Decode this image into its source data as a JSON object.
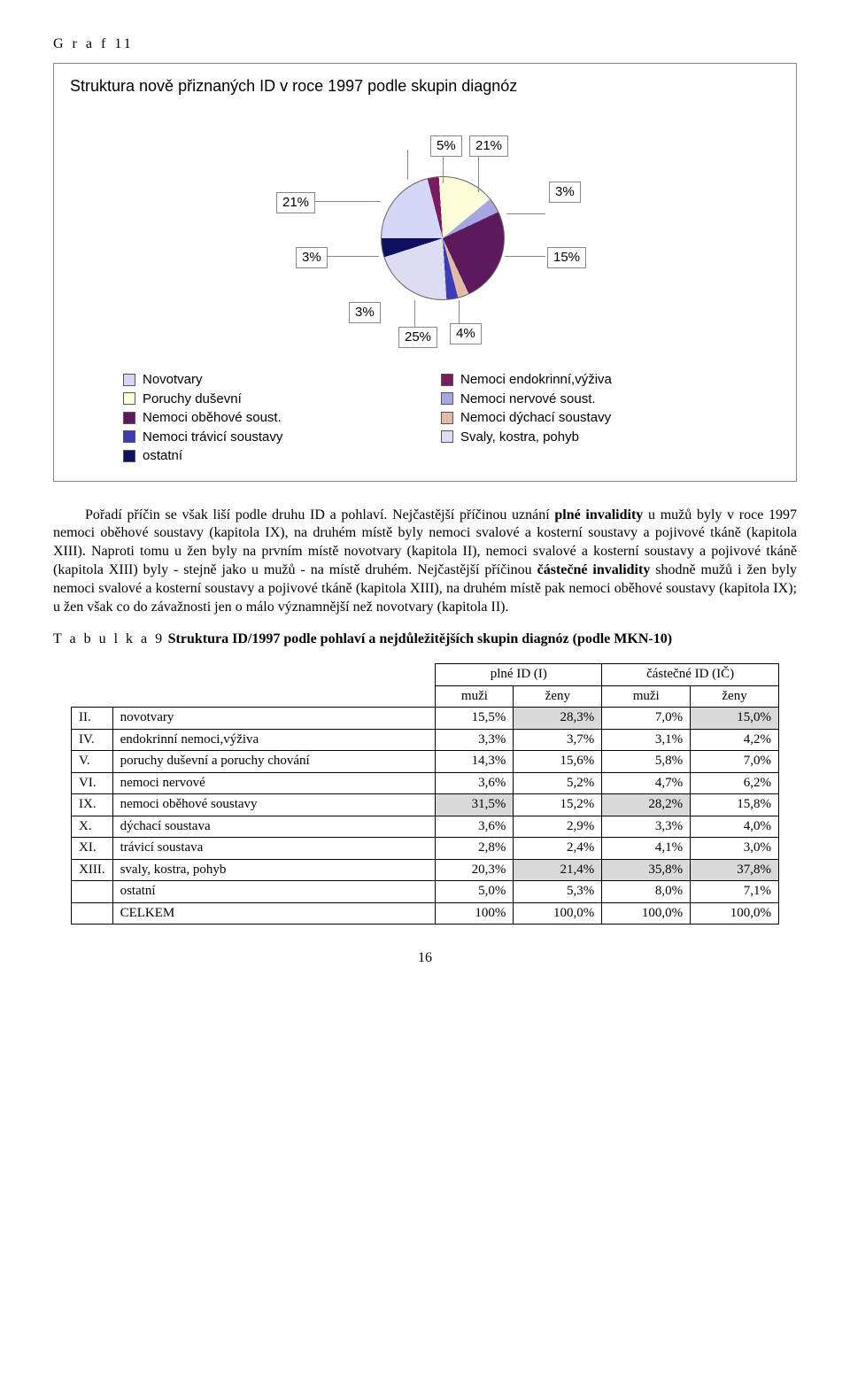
{
  "graf": {
    "label_prefix": "G r a f 11",
    "chart_title": "Struktura nově přiznaných ID v roce 1997 podle skupin diagnóz",
    "type": "pie",
    "slices": [
      {
        "label": "Novotvary",
        "value": 21,
        "color": "#d6d6f7"
      },
      {
        "label": "Nemoci endokrinní,výživa",
        "value": 3,
        "color": "#7a1d5e"
      },
      {
        "label": "Poruchy duševní",
        "value": 15,
        "color": "#fdfdda"
      },
      {
        "label": "Nemoci nervové soust.",
        "value": 4,
        "color": "#a6a6e0"
      },
      {
        "label": "Nemoci oběhové soust.",
        "value": 25,
        "color": "#5b1a5b"
      },
      {
        "label": "Nemoci dýchací soustavy",
        "value": 3,
        "color": "#e0bba8"
      },
      {
        "label": "Nemoci trávicí soustavy",
        "value": 3,
        "color": "#3c3cb5"
      },
      {
        "label": "Svaly, kostra, pohyb",
        "value": 21,
        "color": "#dcdcf2"
      },
      {
        "label": "ostatní",
        "value": 5,
        "color": "#101060"
      }
    ],
    "callouts": {
      "c21a": "21%",
      "c5": "5%",
      "c21b": "21%",
      "c3a": "3%",
      "c15": "15%",
      "c4": "4%",
      "c25": "25%",
      "c3b": "3%",
      "c3c": "3%"
    },
    "legend_left": [
      "Novotvary",
      "Poruchy duševní",
      "Nemoci oběhové soust.",
      "Nemoci trávicí soustavy",
      "ostatní"
    ],
    "legend_right": [
      "Nemoci endokrinní,výživa",
      "Nemoci nervové soust.",
      "Nemoci dýchací soustavy",
      "Svaly, kostra, pohyb"
    ]
  },
  "para1_html": "Pořadí příčin se však liší podle druhu ID a pohlaví. Nejčastější příčinou uznání <b>plné invalidity</b> u mužů byly v roce 1997 nemoci oběhové soustavy (kapitola IX), na druhém místě byly nemoci svalové a kosterní soustavy a pojivové tkáně (kapitola XIII).  Naproti tomu  u žen   byly na prvním místě novotvary (kapitola II), nemoci svalové a kosterní soustavy a pojivové tkáně (kapitola XIII) byly - stejně jako u mužů - na místě druhém. Nejčastější příčinou  <b>částečné invalidity</b> shodně  mužů i žen byly nemoci svalové a kosterní soustavy a pojivové tkáně (kapitola XIII), na druhém místě pak nemoci oběhové soustavy (kapitola IX); u žen však co do závažnosti jen o málo významnější než  novotvary (kapitola II).",
  "table9": {
    "heading_html": "<span class=\"tspaced\">T a b u l k a 9</span>  <b>Struktura ID/1997 podle pohlaví a nejdůležitějších skupin diagnóz (</b>podle MKN-10<b>)</b>",
    "group_headers": [
      "plné ID (I)",
      "částečné ID (IČ)"
    ],
    "sub_headers": [
      "muži",
      "ženy",
      "muži",
      "ženy"
    ],
    "rows": [
      {
        "rn": "II.",
        "label": "novotvary",
        "v": [
          "15,5%",
          "28,3%",
          "7,0%",
          "15,0%"
        ],
        "hl": [
          false,
          true,
          false,
          true
        ]
      },
      {
        "rn": "IV.",
        "label": "endokrinní nemoci,výživa",
        "v": [
          "3,3%",
          "3,7%",
          "3,1%",
          "4,2%"
        ],
        "hl": [
          false,
          false,
          false,
          false
        ]
      },
      {
        "rn": "V.",
        "label": "poruchy duševní a poruchy chování",
        "v": [
          "14,3%",
          "15,6%",
          "5,8%",
          "7,0%"
        ],
        "hl": [
          false,
          false,
          false,
          false
        ]
      },
      {
        "rn": "VI.",
        "label": "nemoci nervové",
        "v": [
          "3,6%",
          "5,2%",
          "4,7%",
          "6,2%"
        ],
        "hl": [
          false,
          false,
          false,
          false
        ]
      },
      {
        "rn": "IX.",
        "label": "nemoci oběhové soustavy",
        "v": [
          "31,5%",
          "15,2%",
          "28,2%",
          "15,8%"
        ],
        "hl": [
          true,
          false,
          true,
          false
        ]
      },
      {
        "rn": "X.",
        "label": "dýchací soustava",
        "v": [
          "3,6%",
          "2,9%",
          "3,3%",
          "4,0%"
        ],
        "hl": [
          false,
          false,
          false,
          false
        ]
      },
      {
        "rn": "XI.",
        "label": "trávicí soustava",
        "v": [
          "2,8%",
          "2,4%",
          "4,1%",
          "3,0%"
        ],
        "hl": [
          false,
          false,
          false,
          false
        ]
      },
      {
        "rn": "XIII.",
        "label": "svaly, kostra, pohyb",
        "v": [
          "20,3%",
          "21,4%",
          "35,8%",
          "37,8%"
        ],
        "hl": [
          false,
          true,
          true,
          true
        ]
      },
      {
        "rn": "",
        "label": "ostatní",
        "v": [
          "5,0%",
          "5,3%",
          "8,0%",
          "7,1%"
        ],
        "hl": [
          false,
          false,
          false,
          false
        ]
      },
      {
        "rn": "",
        "label": "CELKEM",
        "v": [
          "100%",
          "100,0%",
          "100,0%",
          "100,0%"
        ],
        "hl": [
          false,
          false,
          false,
          false
        ]
      }
    ]
  },
  "page_number": "16"
}
